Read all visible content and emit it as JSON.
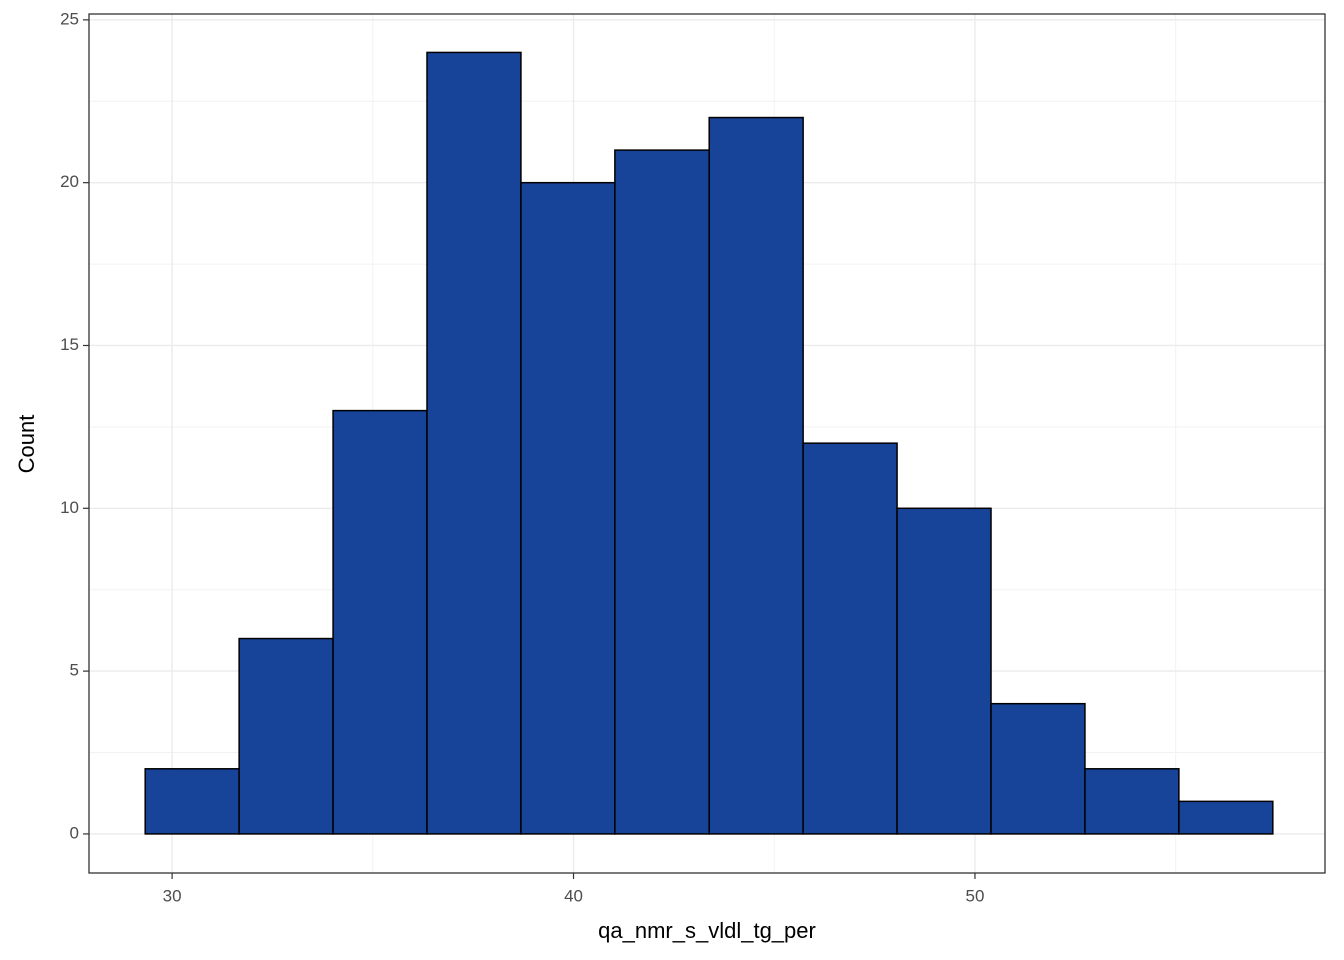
{
  "chart_data": {
    "type": "histogram",
    "x_label": "qa_nmr_s_vldl_tg_per",
    "y_label": "Count",
    "bins": [
      29.33,
      31.67,
      34.01,
      36.35,
      38.69,
      41.03,
      43.38,
      45.72,
      48.06,
      50.4,
      52.74,
      55.08,
      57.42
    ],
    "values": [
      2,
      6,
      13,
      24,
      20,
      21,
      22,
      12,
      10,
      4,
      2,
      1
    ],
    "color": "#174499",
    "edge_color": "#000000",
    "xlim": [
      27.93,
      58.72
    ],
    "xticks": [
      30,
      40,
      50
    ],
    "ylim": [
      -1.2,
      25.18
    ],
    "yticks": [
      0,
      5,
      10,
      15,
      20,
      25
    ],
    "grid": true
  }
}
